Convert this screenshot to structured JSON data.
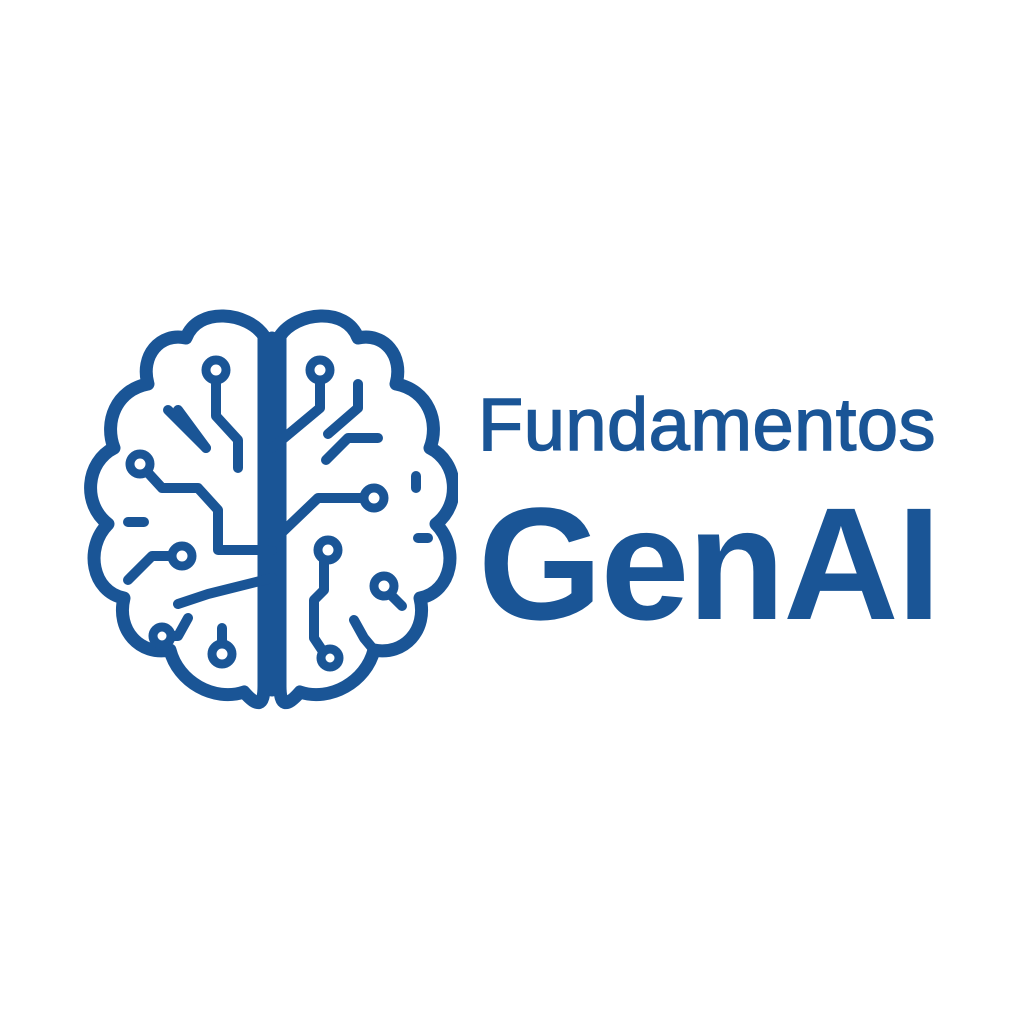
{
  "brand": {
    "line1": "Fundamentos",
    "line2": "GenAI",
    "color": "#1a5596",
    "background": "#ffffff",
    "icon": "brain-circuit-icon"
  }
}
